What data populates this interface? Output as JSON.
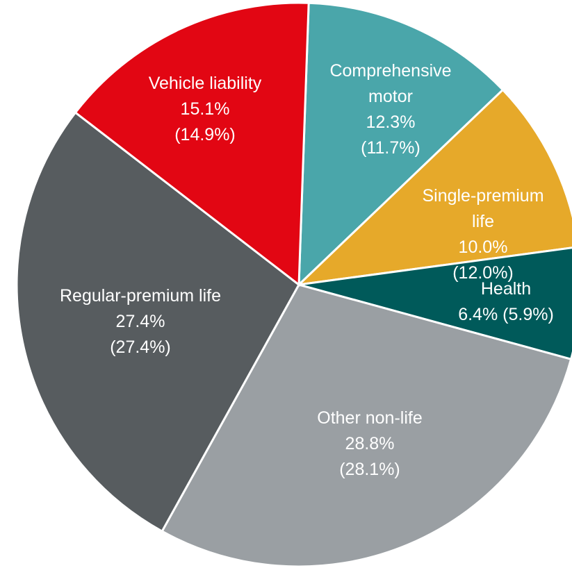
{
  "chart_data": {
    "type": "pie",
    "categories": [
      "Comprehensive motor",
      "Single-premium life",
      "Health",
      "Other non-life",
      "Regular-premium life",
      "Vehicle liability"
    ],
    "values": [
      12.3,
      10.0,
      6.4,
      28.8,
      27.4,
      15.1
    ],
    "value_labels": [
      "12.3%",
      "10.0%",
      "6.4%",
      "28.8%",
      "27.4%",
      "15.1%"
    ],
    "prior_values": [
      11.7,
      12.0,
      5.9,
      28.1,
      27.4,
      14.9
    ],
    "prior_value_labels": [
      "(11.7%)",
      "(12.0%)",
      "(5.9%)",
      "(28.1%)",
      "(27.4%)",
      "(14.9%)"
    ],
    "colors": [
      "#4aa6aa",
      "#e6a92a",
      "#005a5a",
      "#9a9fa3",
      "#575c5f",
      "#e20613"
    ]
  }
}
